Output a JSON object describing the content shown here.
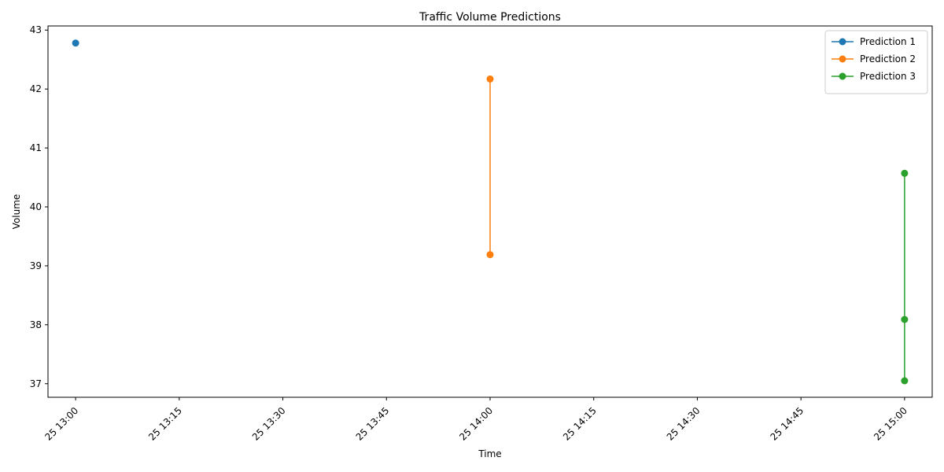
{
  "chart_data": {
    "type": "line",
    "title": "Traffic Volume Predictions",
    "xlabel": "Time",
    "ylabel": "Volume",
    "x_ticks": [
      "25 13:00",
      "25 13:15",
      "25 13:30",
      "25 13:45",
      "25 14:00",
      "25 14:15",
      "25 14:30",
      "25 14:45",
      "25 15:00"
    ],
    "y_ticks": [
      "37",
      "38",
      "39",
      "40",
      "41",
      "42",
      "43"
    ],
    "ylim": [
      36.77,
      43.07
    ],
    "xlim": [
      "25 12:56",
      "25 15:04"
    ],
    "legend_position": "top-right",
    "series": [
      {
        "name": "Prediction 1",
        "color": "#1f77b4",
        "points": [
          {
            "x": "25 13:00",
            "y": 42.78
          }
        ]
      },
      {
        "name": "Prediction 2",
        "color": "#ff7f0e",
        "points": [
          {
            "x": "25 14:00",
            "y": 42.17
          },
          {
            "x": "25 14:00",
            "y": 39.19
          }
        ]
      },
      {
        "name": "Prediction 3",
        "color": "#2ca02c",
        "points": [
          {
            "x": "25 15:00",
            "y": 40.57
          },
          {
            "x": "25 15:00",
            "y": 38.09
          },
          {
            "x": "25 15:00",
            "y": 37.05
          }
        ]
      }
    ]
  }
}
